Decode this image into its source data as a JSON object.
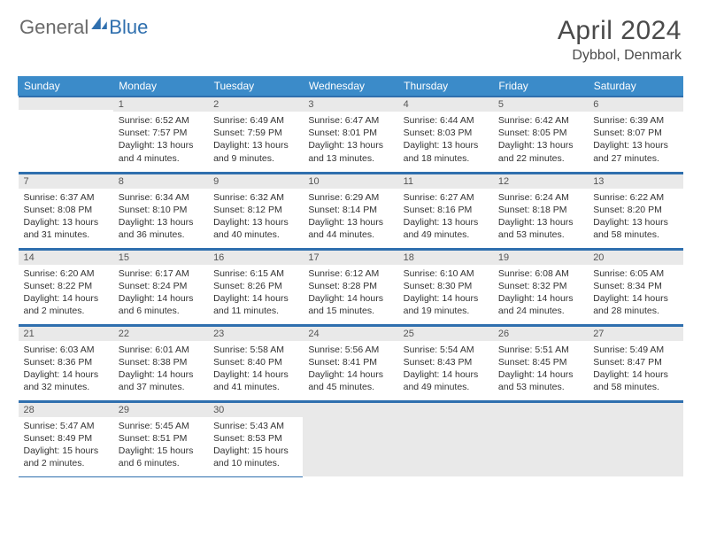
{
  "brand": {
    "part1": "General",
    "part2": "Blue"
  },
  "title": "April 2024",
  "location": "Dybbol, Denmark",
  "colors": {
    "header_bg": "#3b8bc9",
    "rule": "#2f6fae",
    "daynum_bg": "#e9e9e9",
    "text": "#333333",
    "title_text": "#4a4a4a"
  },
  "week_labels": [
    "Sunday",
    "Monday",
    "Tuesday",
    "Wednesday",
    "Thursday",
    "Friday",
    "Saturday"
  ],
  "grid": [
    [
      {
        "day": "",
        "lines": [
          "",
          "",
          "",
          ""
        ]
      },
      {
        "day": "1",
        "lines": [
          "Sunrise: 6:52 AM",
          "Sunset: 7:57 PM",
          "Daylight: 13 hours",
          "and 4 minutes."
        ]
      },
      {
        "day": "2",
        "lines": [
          "Sunrise: 6:49 AM",
          "Sunset: 7:59 PM",
          "Daylight: 13 hours",
          "and 9 minutes."
        ]
      },
      {
        "day": "3",
        "lines": [
          "Sunrise: 6:47 AM",
          "Sunset: 8:01 PM",
          "Daylight: 13 hours",
          "and 13 minutes."
        ]
      },
      {
        "day": "4",
        "lines": [
          "Sunrise: 6:44 AM",
          "Sunset: 8:03 PM",
          "Daylight: 13 hours",
          "and 18 minutes."
        ]
      },
      {
        "day": "5",
        "lines": [
          "Sunrise: 6:42 AM",
          "Sunset: 8:05 PM",
          "Daylight: 13 hours",
          "and 22 minutes."
        ]
      },
      {
        "day": "6",
        "lines": [
          "Sunrise: 6:39 AM",
          "Sunset: 8:07 PM",
          "Daylight: 13 hours",
          "and 27 minutes."
        ]
      }
    ],
    [
      {
        "day": "7",
        "lines": [
          "Sunrise: 6:37 AM",
          "Sunset: 8:08 PM",
          "Daylight: 13 hours",
          "and 31 minutes."
        ]
      },
      {
        "day": "8",
        "lines": [
          "Sunrise: 6:34 AM",
          "Sunset: 8:10 PM",
          "Daylight: 13 hours",
          "and 36 minutes."
        ]
      },
      {
        "day": "9",
        "lines": [
          "Sunrise: 6:32 AM",
          "Sunset: 8:12 PM",
          "Daylight: 13 hours",
          "and 40 minutes."
        ]
      },
      {
        "day": "10",
        "lines": [
          "Sunrise: 6:29 AM",
          "Sunset: 8:14 PM",
          "Daylight: 13 hours",
          "and 44 minutes."
        ]
      },
      {
        "day": "11",
        "lines": [
          "Sunrise: 6:27 AM",
          "Sunset: 8:16 PM",
          "Daylight: 13 hours",
          "and 49 minutes."
        ]
      },
      {
        "day": "12",
        "lines": [
          "Sunrise: 6:24 AM",
          "Sunset: 8:18 PM",
          "Daylight: 13 hours",
          "and 53 minutes."
        ]
      },
      {
        "day": "13",
        "lines": [
          "Sunrise: 6:22 AM",
          "Sunset: 8:20 PM",
          "Daylight: 13 hours",
          "and 58 minutes."
        ]
      }
    ],
    [
      {
        "day": "14",
        "lines": [
          "Sunrise: 6:20 AM",
          "Sunset: 8:22 PM",
          "Daylight: 14 hours",
          "and 2 minutes."
        ]
      },
      {
        "day": "15",
        "lines": [
          "Sunrise: 6:17 AM",
          "Sunset: 8:24 PM",
          "Daylight: 14 hours",
          "and 6 minutes."
        ]
      },
      {
        "day": "16",
        "lines": [
          "Sunrise: 6:15 AM",
          "Sunset: 8:26 PM",
          "Daylight: 14 hours",
          "and 11 minutes."
        ]
      },
      {
        "day": "17",
        "lines": [
          "Sunrise: 6:12 AM",
          "Sunset: 8:28 PM",
          "Daylight: 14 hours",
          "and 15 minutes."
        ]
      },
      {
        "day": "18",
        "lines": [
          "Sunrise: 6:10 AM",
          "Sunset: 8:30 PM",
          "Daylight: 14 hours",
          "and 19 minutes."
        ]
      },
      {
        "day": "19",
        "lines": [
          "Sunrise: 6:08 AM",
          "Sunset: 8:32 PM",
          "Daylight: 14 hours",
          "and 24 minutes."
        ]
      },
      {
        "day": "20",
        "lines": [
          "Sunrise: 6:05 AM",
          "Sunset: 8:34 PM",
          "Daylight: 14 hours",
          "and 28 minutes."
        ]
      }
    ],
    [
      {
        "day": "21",
        "lines": [
          "Sunrise: 6:03 AM",
          "Sunset: 8:36 PM",
          "Daylight: 14 hours",
          "and 32 minutes."
        ]
      },
      {
        "day": "22",
        "lines": [
          "Sunrise: 6:01 AM",
          "Sunset: 8:38 PM",
          "Daylight: 14 hours",
          "and 37 minutes."
        ]
      },
      {
        "day": "23",
        "lines": [
          "Sunrise: 5:58 AM",
          "Sunset: 8:40 PM",
          "Daylight: 14 hours",
          "and 41 minutes."
        ]
      },
      {
        "day": "24",
        "lines": [
          "Sunrise: 5:56 AM",
          "Sunset: 8:41 PM",
          "Daylight: 14 hours",
          "and 45 minutes."
        ]
      },
      {
        "day": "25",
        "lines": [
          "Sunrise: 5:54 AM",
          "Sunset: 8:43 PM",
          "Daylight: 14 hours",
          "and 49 minutes."
        ]
      },
      {
        "day": "26",
        "lines": [
          "Sunrise: 5:51 AM",
          "Sunset: 8:45 PM",
          "Daylight: 14 hours",
          "and 53 minutes."
        ]
      },
      {
        "day": "27",
        "lines": [
          "Sunrise: 5:49 AM",
          "Sunset: 8:47 PM",
          "Daylight: 14 hours",
          "and 58 minutes."
        ]
      }
    ],
    [
      {
        "day": "28",
        "lines": [
          "Sunrise: 5:47 AM",
          "Sunset: 8:49 PM",
          "Daylight: 15 hours",
          "and 2 minutes."
        ]
      },
      {
        "day": "29",
        "lines": [
          "Sunrise: 5:45 AM",
          "Sunset: 8:51 PM",
          "Daylight: 15 hours",
          "and 6 minutes."
        ]
      },
      {
        "day": "30",
        "lines": [
          "Sunrise: 5:43 AM",
          "Sunset: 8:53 PM",
          "Daylight: 15 hours",
          "and 10 minutes."
        ]
      },
      {
        "day": "",
        "lines": [
          "",
          "",
          "",
          ""
        ]
      },
      {
        "day": "",
        "lines": [
          "",
          "",
          "",
          ""
        ]
      },
      {
        "day": "",
        "lines": [
          "",
          "",
          "",
          ""
        ]
      },
      {
        "day": "",
        "lines": [
          "",
          "",
          "",
          ""
        ]
      }
    ]
  ]
}
